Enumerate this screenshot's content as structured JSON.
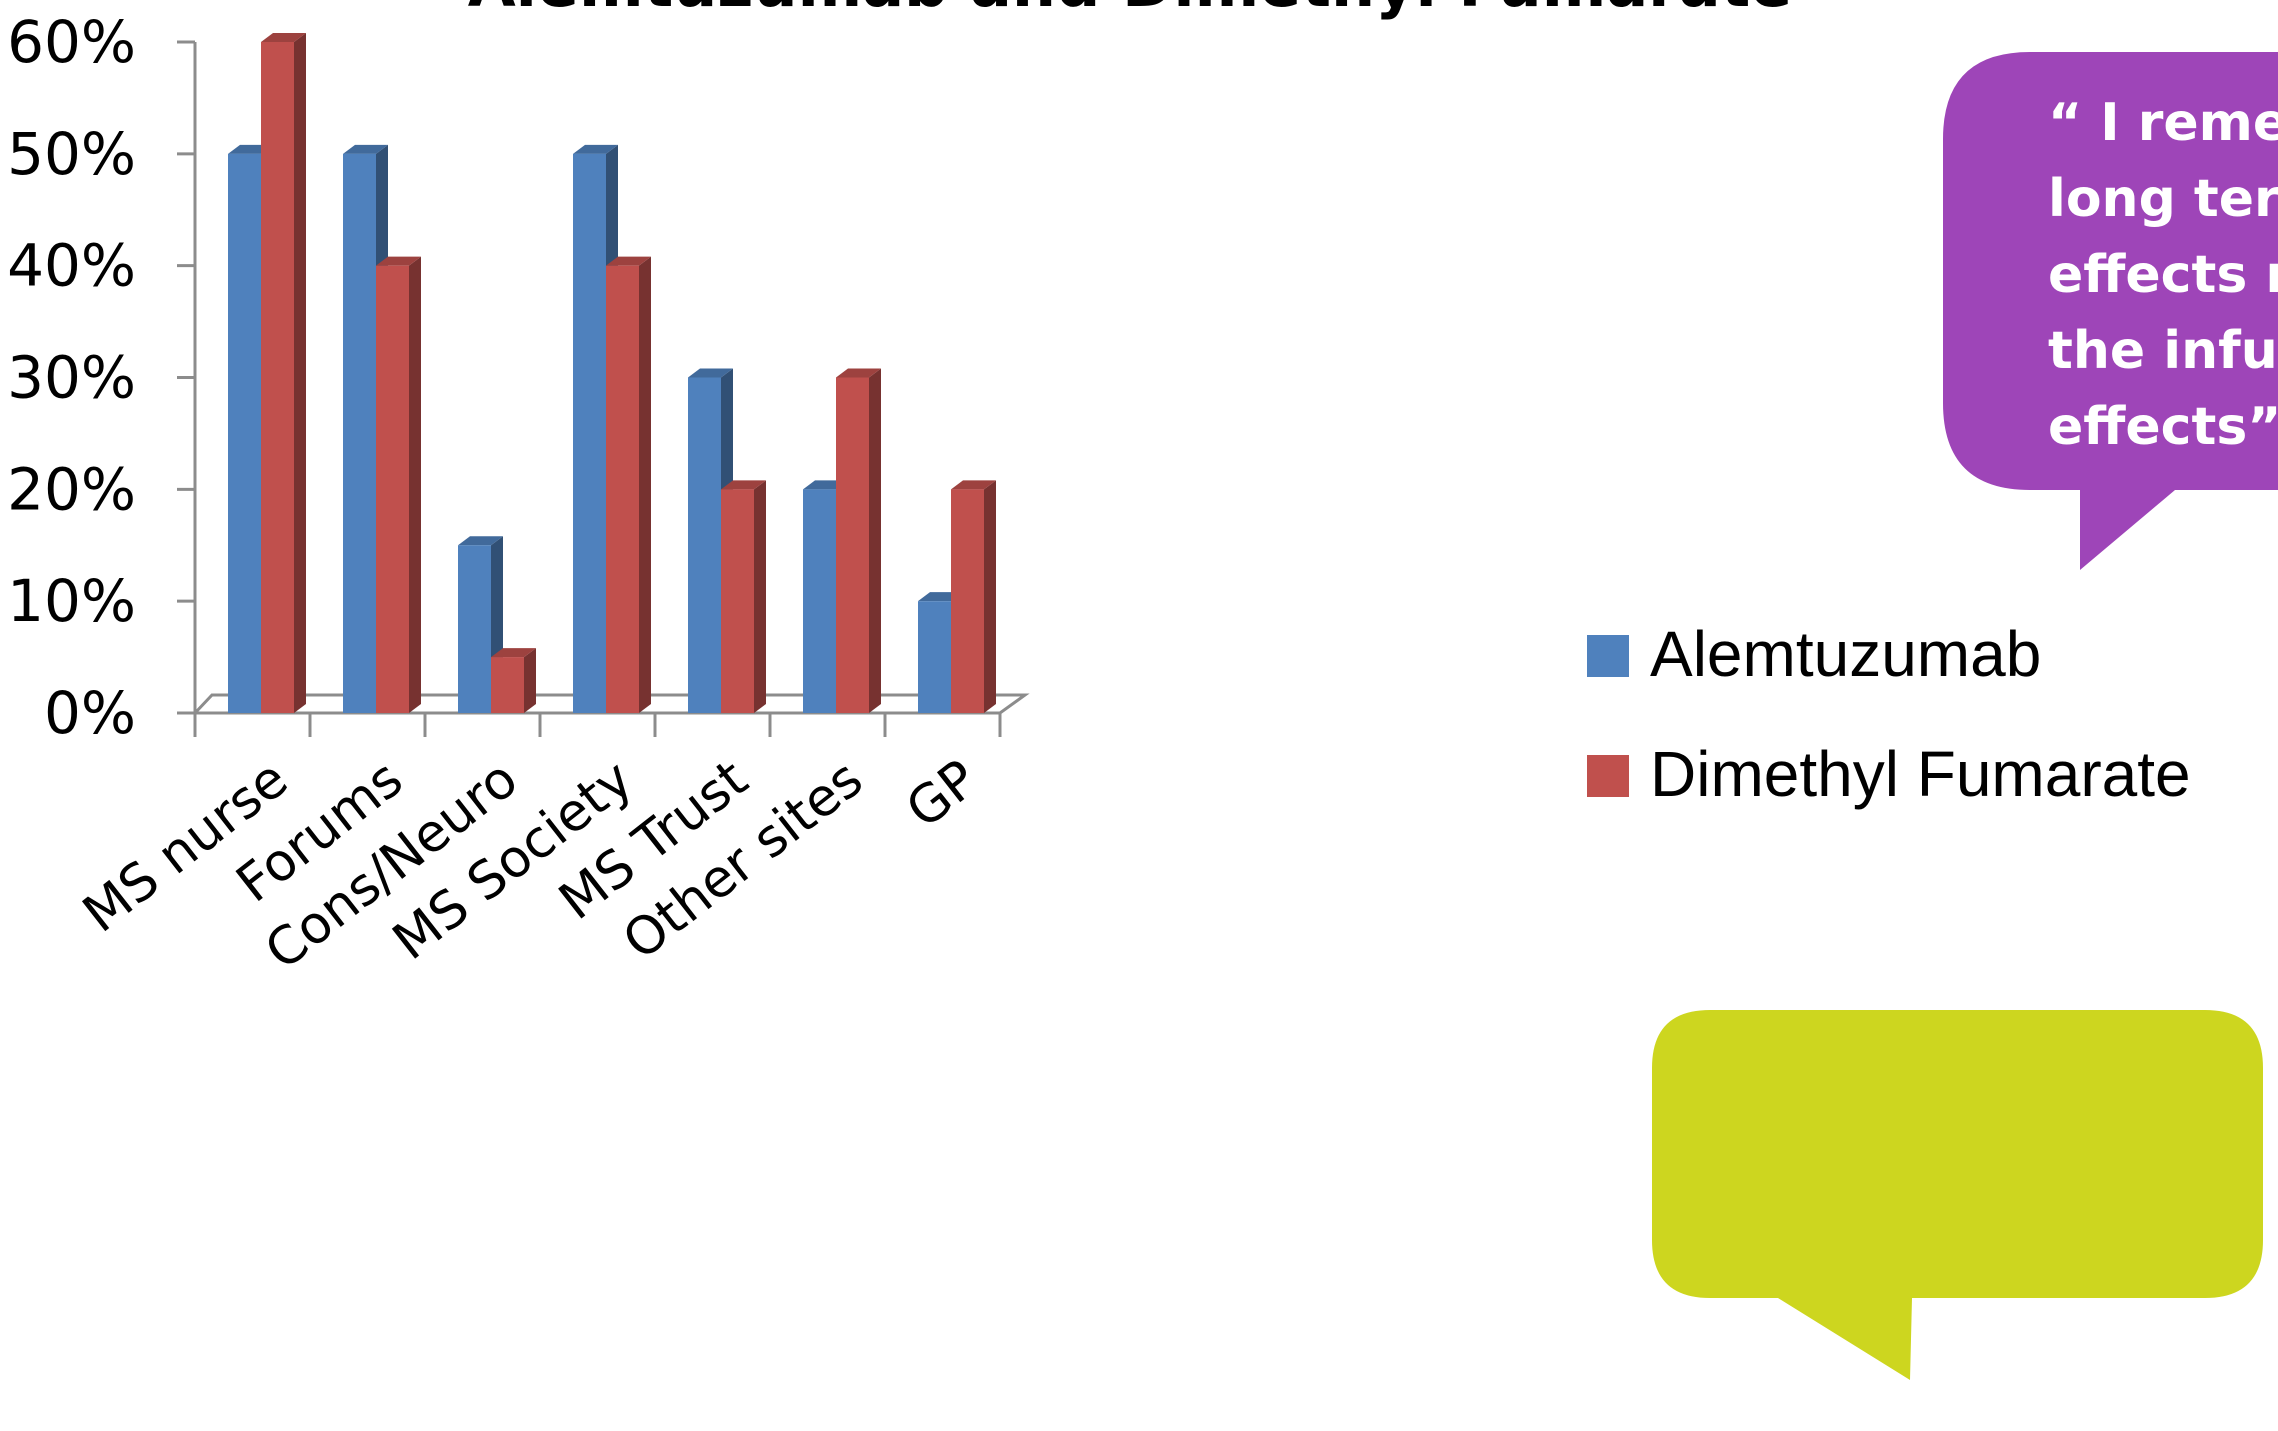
{
  "chart_data": {
    "type": "bar",
    "title": "Alemtuzumab and Dimethyl Fumarate",
    "categories": [
      "MS nurse",
      "Forums",
      "Cons/Neuro",
      "MS Society",
      "MS Trust",
      "Other sites",
      "GP"
    ],
    "series": [
      {
        "name": "Alemtuzumab",
        "values": [
          50,
          50,
          15,
          50,
          30,
          20,
          10
        ]
      },
      {
        "name": "Dimethyl Fumarate",
        "values": [
          60,
          40,
          5,
          40,
          20,
          30,
          20
        ]
      }
    ],
    "ylim": [
      0,
      60
    ],
    "yticks": [
      "0%",
      "10%",
      "20%",
      "30%",
      "40%",
      "50%",
      "60%"
    ],
    "xlabel": "",
    "ylabel": "",
    "legend_position": "right",
    "grid": false,
    "colors": {
      "Alemtuzumab": "#4f81bd",
      "Dimethyl Fumarate": "#c0504d"
    }
  },
  "callouts": {
    "quote_lines": [
      "“ I reme",
      "long ter",
      "effects r",
      "the infu",
      "effects”"
    ],
    "quote_color": "#9e45b8",
    "empty_color": "#cdd61f"
  }
}
